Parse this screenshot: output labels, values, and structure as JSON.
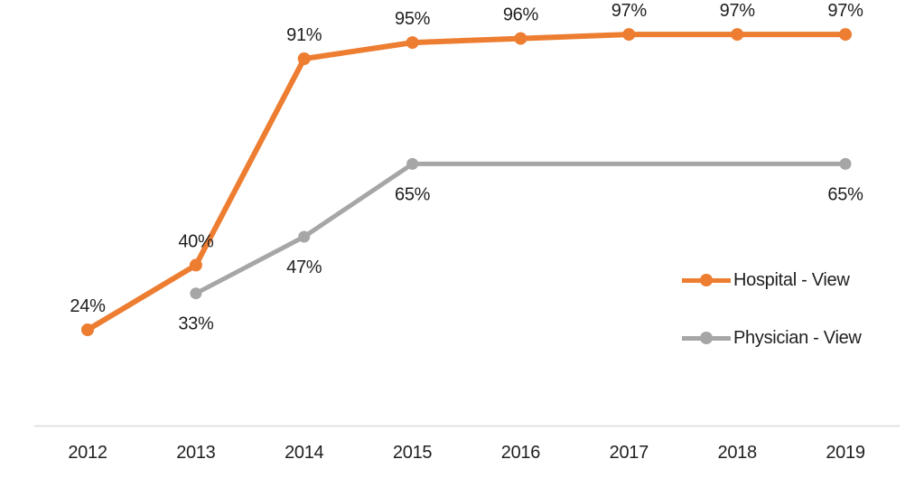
{
  "chart_data": {
    "type": "line",
    "title": "",
    "xlabel": "",
    "ylabel": "",
    "categories": [
      "2012",
      "2013",
      "2014",
      "2015",
      "2016",
      "2017",
      "2018",
      "2019"
    ],
    "ylim": [
      0,
      100
    ],
    "grid": false,
    "legend_position": "right-middle",
    "axis_line_color": "#D9D9D9",
    "text_color": "#1f1f1f",
    "series": [
      {
        "name": "Hospital - View",
        "color": "#ED7D31",
        "values": [
          24,
          40,
          91,
          95,
          96,
          97,
          97,
          97
        ],
        "labels": [
          "24%",
          "40%",
          "91%",
          "95%",
          "96%",
          "97%",
          "97%",
          "97%"
        ],
        "label_side": "above",
        "marker_at": [
          0,
          1,
          2,
          3,
          4,
          5,
          6,
          7
        ],
        "label_at": [
          0,
          1,
          2,
          3,
          4,
          5,
          6,
          7
        ]
      },
      {
        "name": "Physician - View",
        "color": "#A6A6A6",
        "values": [
          null,
          33,
          47,
          65,
          65,
          65,
          65,
          65
        ],
        "labels": [
          null,
          "33%",
          "47%",
          "65%",
          null,
          null,
          null,
          "65%"
        ],
        "label_side": "below",
        "marker_at": [
          1,
          2,
          3,
          7
        ],
        "label_at": [
          1,
          2,
          3,
          7
        ]
      }
    ]
  }
}
